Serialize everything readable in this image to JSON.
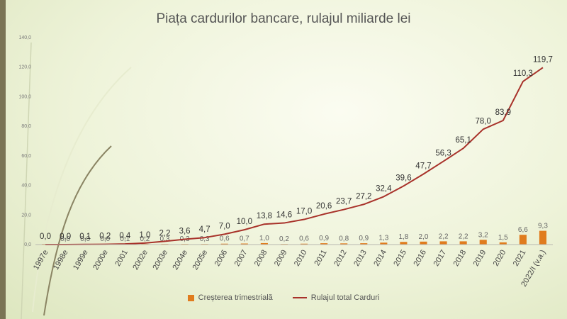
{
  "chart_data": {
    "type": "bar+line",
    "title": "Piața cardurilor bancare, rulajul miliarde lei",
    "categories": [
      "1997e",
      "1998e",
      "1999e",
      "2000e",
      "2001",
      "2002e",
      "2003e",
      "2004e",
      "2005e",
      "2006",
      "2007",
      "2008",
      "2009",
      "2010",
      "2011",
      "2012",
      "2013",
      "2014",
      "2015",
      "2016",
      "2017",
      "2018",
      "2019",
      "2020",
      "2021",
      "2022/I (v.a.)"
    ],
    "series": [
      {
        "name": "Creșterea trimestrială",
        "type": "bar",
        "color": "#e07c1e",
        "values": [
          0.0,
          0.0,
          0.0,
          0.0,
          0.1,
          0.2,
          0.3,
          0.3,
          0.3,
          0.6,
          0.7,
          1.0,
          0.2,
          0.6,
          0.9,
          0.8,
          0.9,
          1.3,
          1.8,
          2.0,
          2.2,
          2.2,
          3.2,
          1.5,
          6.6,
          9.3
        ]
      },
      {
        "name": "Rulajul total Carduri",
        "type": "line",
        "color": "#a8322a",
        "values": [
          0.0,
          0.0,
          0.1,
          0.2,
          0.4,
          1.0,
          2.2,
          3.6,
          4.7,
          7.0,
          10.0,
          13.8,
          14.6,
          17.0,
          20.6,
          23.7,
          27.2,
          32.4,
          39.6,
          47.7,
          56.3,
          65.1,
          78.0,
          83.9,
          110.3,
          119.7
        ]
      }
    ],
    "bar_labels": [
      "",
      "0,0",
      "0,0",
      "0,0",
      "0,1",
      "0,2",
      "0,3",
      "0,3",
      "0,3",
      "0,6",
      "0,7",
      "1,0",
      "0,2",
      "0,6",
      "0,9",
      "0,8",
      "0,9",
      "1,3",
      "1,8",
      "2,0",
      "2,2",
      "2,2",
      "3,2",
      "1,5",
      "6,6",
      "9,3"
    ],
    "line_labels": [
      "0,0",
      "0,0",
      "0,1",
      "0,2",
      "0,4",
      "1,0",
      "2,2",
      "3,6",
      "4,7",
      "7,0",
      "10,0",
      "13,8",
      "14,6",
      "17,0",
      "20,6",
      "23,7",
      "27,2",
      "32,4",
      "39,6",
      "47,7",
      "56,3",
      "65,1",
      "78,0",
      "83,9",
      "110,3",
      "119,7"
    ],
    "yticks": [
      "0,0",
      "20,0",
      "40,0",
      "60,0",
      "80,0",
      "100,0",
      "120,0",
      "140,0"
    ],
    "ylim": [
      0,
      140
    ],
    "grid": false,
    "legend": "bottom"
  }
}
